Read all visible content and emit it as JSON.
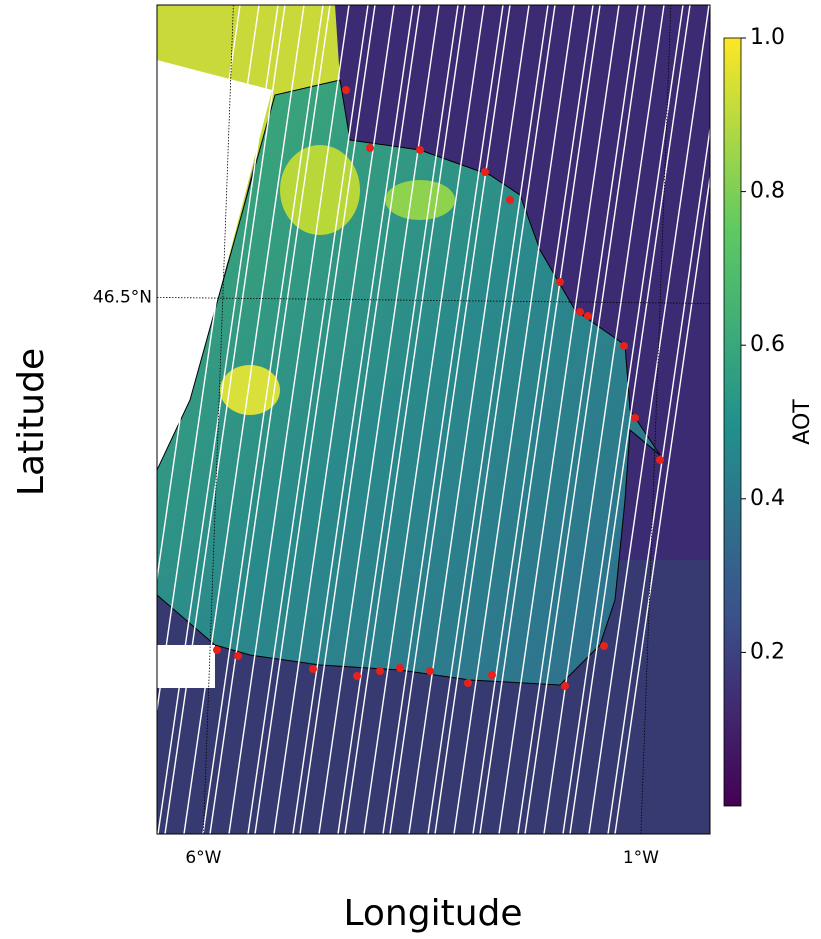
{
  "chart_data": {
    "type": "map",
    "xlabel": "Longitude",
    "ylabel": "Latitude",
    "xlim": [
      -6.53,
      -0.21
    ],
    "ylim": [
      42.28,
      48.8
    ],
    "xticks": [
      {
        "value": -6,
        "label": "6°W"
      },
      {
        "value": -1,
        "label": "1°W"
      }
    ],
    "yticks": [
      {
        "value": 46.5,
        "label": "46.5°N"
      }
    ],
    "grid": true,
    "colorbar": {
      "label": "AOT",
      "lim": [
        0,
        1
      ],
      "ticks": [
        0.2,
        0.4,
        0.6,
        0.8,
        {
          "value": 1,
          "label": "1.0"
        }
      ],
      "colors": [
        "#440154",
        "#3b528b",
        "#21918c",
        "#5ec962",
        "#fde725"
      ]
    }
  }
}
